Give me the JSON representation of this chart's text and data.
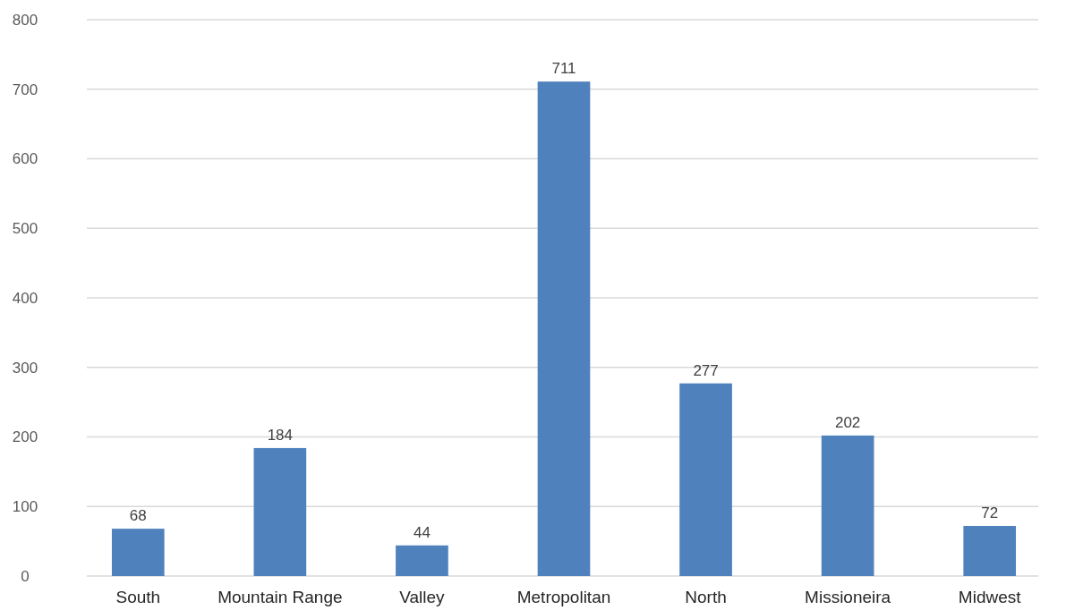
{
  "chart_data": {
    "type": "bar",
    "categories": [
      "South",
      "Mountain Range",
      "Valley",
      "Metropolitan",
      "North",
      "Missioneira",
      "Midwest"
    ],
    "values": [
      68,
      184,
      44,
      711,
      277,
      202,
      72
    ],
    "color": "#4f81bd",
    "ylim": [
      0,
      800
    ],
    "yticks": [
      0,
      100,
      200,
      300,
      400,
      500,
      600,
      700,
      800
    ],
    "grid": "y",
    "data_labels": true
  }
}
